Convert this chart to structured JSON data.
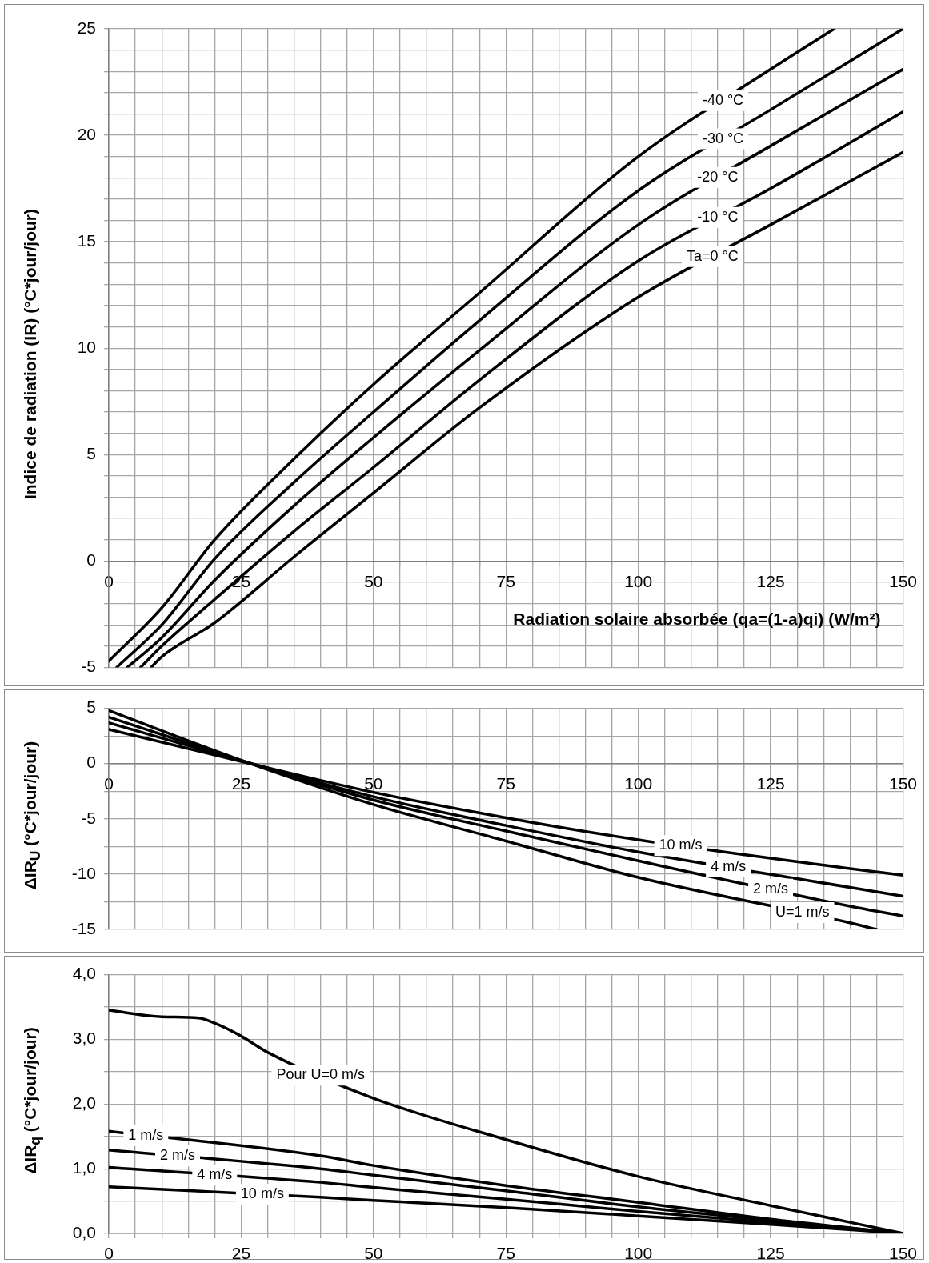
{
  "chart_data": [
    {
      "type": "line",
      "xlabel": "Radiation solaire absorbée (qa=(1-a)qi) (W/m²)",
      "ylabel": "Indice de radiation (IR) (°C*jour/jour)",
      "xlim": [
        0,
        150
      ],
      "ylim": [
        -5,
        25
      ],
      "xticks": [
        0,
        {
          "value": 5,
          "label": null
        },
        {
          "value": 10,
          "label": null
        },
        {
          "value": 15,
          "label": null
        },
        {
          "value": 20,
          "label": null
        },
        25,
        {
          "value": 30,
          "label": null
        },
        {
          "value": 35,
          "label": null
        },
        {
          "value": 40,
          "label": null
        },
        {
          "value": 45,
          "label": null
        },
        50,
        {
          "value": 55,
          "label": null
        },
        {
          "value": 60,
          "label": null
        },
        {
          "value": 65,
          "label": null
        },
        {
          "value": 70,
          "label": null
        },
        75,
        {
          "value": 80,
          "label": null
        },
        {
          "value": 85,
          "label": null
        },
        {
          "value": 90,
          "label": null
        },
        {
          "value": 95,
          "label": null
        },
        100,
        {
          "value": 105,
          "label": null
        },
        {
          "value": 110,
          "label": null
        },
        {
          "value": 115,
          "label": null
        },
        {
          "value": 120,
          "label": null
        },
        125,
        {
          "value": 130,
          "label": null
        },
        {
          "value": 135,
          "label": null
        },
        {
          "value": 140,
          "label": null
        },
        {
          "value": 145,
          "label": null
        },
        150
      ],
      "yticks": [
        -5,
        {
          "value": -4,
          "label": null
        },
        {
          "value": -3,
          "label": null
        },
        {
          "value": -2,
          "label": null
        },
        {
          "value": -1,
          "label": null
        },
        0,
        {
          "value": 1,
          "label": null
        },
        {
          "value": 2,
          "label": null
        },
        {
          "value": 3,
          "label": null
        },
        {
          "value": 4,
          "label": null
        },
        5,
        {
          "value": 6,
          "label": null
        },
        {
          "value": 7,
          "label": null
        },
        {
          "value": 8,
          "label": null
        },
        {
          "value": 9,
          "label": null
        },
        10,
        {
          "value": 11,
          "label": null
        },
        {
          "value": 12,
          "label": null
        },
        {
          "value": 13,
          "label": null
        },
        {
          "value": 14,
          "label": null
        },
        15,
        {
          "value": 16,
          "label": null
        },
        {
          "value": 17,
          "label": null
        },
        {
          "value": 18,
          "label": null
        },
        {
          "value": 19,
          "label": null
        },
        20,
        {
          "value": 21,
          "label": null
        },
        {
          "value": 22,
          "label": null
        },
        {
          "value": 23,
          "label": null
        },
        {
          "value": 24,
          "label": null
        },
        25
      ],
      "grid": true,
      "marker": "none",
      "line_style": "solid",
      "series": [
        {
          "name": "-40 °C",
          "color": "#000000",
          "x": [
            0,
            10,
            20,
            35,
            50,
            70,
            100,
            125,
            137
          ],
          "values": [
            -4.7,
            -2.2,
            1.0,
            4.8,
            8.3,
            12.6,
            19.0,
            23.1,
            25
          ]
        },
        {
          "name": "-30 °C",
          "color": "#000000",
          "x": [
            1.5,
            10,
            20,
            35,
            50,
            70,
            100,
            125,
            150
          ],
          "values": [
            -5,
            -3.0,
            0.1,
            3.7,
            7.0,
            11.3,
            17.4,
            21.2,
            25
          ]
        },
        {
          "name": "-20 °C",
          "color": "#000000",
          "x": [
            3.5,
            10,
            20,
            35,
            50,
            70,
            100,
            125,
            150
          ],
          "values": [
            -5,
            -3.6,
            -0.9,
            2.6,
            5.8,
            9.9,
            15.8,
            19.5,
            23.1
          ]
        },
        {
          "name": "-10 °C",
          "color": "#000000",
          "x": [
            6,
            10,
            20,
            35,
            50,
            70,
            100,
            125,
            150
          ],
          "values": [
            -5,
            -4.0,
            -1.8,
            1.4,
            4.4,
            8.5,
            14.1,
            17.5,
            21.1
          ]
        },
        {
          "name": "Ta=0 °C",
          "color": "#000000",
          "x": [
            8,
            10,
            20,
            35,
            50,
            70,
            100,
            125,
            150
          ],
          "values": [
            -5,
            -4.5,
            -2.9,
            0.2,
            3.2,
            7.2,
            12.4,
            15.8,
            19.2
          ]
        }
      ]
    },
    {
      "type": "line",
      "ylabel": "ΔIR$_{U}$ (°C*jour/jour)",
      "xlim": [
        0,
        150
      ],
      "ylim": [
        -15,
        5
      ],
      "xticks": [
        0,
        {
          "value": 5,
          "label": null
        },
        {
          "value": 10,
          "label": null
        },
        {
          "value": 15,
          "label": null
        },
        {
          "value": 20,
          "label": null
        },
        25,
        {
          "value": 30,
          "label": null
        },
        {
          "value": 35,
          "label": null
        },
        {
          "value": 40,
          "label": null
        },
        {
          "value": 45,
          "label": null
        },
        50,
        {
          "value": 55,
          "label": null
        },
        {
          "value": 60,
          "label": null
        },
        {
          "value": 65,
          "label": null
        },
        {
          "value": 70,
          "label": null
        },
        75,
        {
          "value": 80,
          "label": null
        },
        {
          "value": 85,
          "label": null
        },
        {
          "value": 90,
          "label": null
        },
        {
          "value": 95,
          "label": null
        },
        100,
        {
          "value": 105,
          "label": null
        },
        {
          "value": 110,
          "label": null
        },
        {
          "value": 115,
          "label": null
        },
        {
          "value": 120,
          "label": null
        },
        125,
        {
          "value": 130,
          "label": null
        },
        {
          "value": 135,
          "label": null
        },
        {
          "value": 140,
          "label": null
        },
        {
          "value": 145,
          "label": null
        },
        150
      ],
      "yticks": [
        -15,
        {
          "value": -12.5,
          "label": null
        },
        -10,
        {
          "value": -7.5,
          "label": null
        },
        -5,
        {
          "value": -2.5,
          "label": null
        },
        0,
        {
          "value": 2.5,
          "label": null
        },
        5
      ],
      "grid": true,
      "marker": "none",
      "line_style": "solid",
      "series": [
        {
          "name": "10 m/s",
          "color": "#000000",
          "x": [
            0,
            25,
            50,
            75,
            100,
            140,
            150
          ],
          "values": [
            3.1,
            0.2,
            -2.6,
            -4.9,
            -6.9,
            -9.5,
            -10.1
          ]
        },
        {
          "name": "4 m/s",
          "color": "#000000",
          "x": [
            0,
            25,
            50,
            75,
            100,
            140,
            150
          ],
          "values": [
            3.7,
            0.25,
            -3.0,
            -5.6,
            -8.0,
            -11.2,
            -12.0
          ]
        },
        {
          "name": "2 m/s",
          "color": "#000000",
          "x": [
            0,
            25,
            50,
            75,
            100,
            140,
            150
          ],
          "values": [
            4.2,
            0.3,
            -3.3,
            -6.1,
            -8.8,
            -12.9,
            -13.8
          ]
        },
        {
          "name": "U=1 m/s",
          "color": "#000000",
          "x": [
            0,
            25,
            50,
            75,
            100,
            140,
            145
          ],
          "values": [
            4.8,
            0.3,
            -3.7,
            -7.0,
            -10.3,
            -14.4,
            -15
          ]
        }
      ]
    },
    {
      "type": "line",
      "ylabel": "ΔIR$_{q}$ (°C*jour/jour)",
      "xlim": [
        0,
        150
      ],
      "ylim": [
        0,
        4
      ],
      "xticks": [
        0,
        {
          "value": 5,
          "label": null
        },
        {
          "value": 10,
          "label": null
        },
        {
          "value": 15,
          "label": null
        },
        {
          "value": 20,
          "label": null
        },
        25,
        {
          "value": 30,
          "label": null
        },
        {
          "value": 35,
          "label": null
        },
        {
          "value": 40,
          "label": null
        },
        {
          "value": 45,
          "label": null
        },
        50,
        {
          "value": 55,
          "label": null
        },
        {
          "value": 60,
          "label": null
        },
        {
          "value": 65,
          "label": null
        },
        {
          "value": 70,
          "label": null
        },
        75,
        {
          "value": 80,
          "label": null
        },
        {
          "value": 85,
          "label": null
        },
        {
          "value": 90,
          "label": null
        },
        {
          "value": 95,
          "label": null
        },
        100,
        {
          "value": 105,
          "label": null
        },
        {
          "value": 110,
          "label": null
        },
        {
          "value": 115,
          "label": null
        },
        {
          "value": 120,
          "label": null
        },
        125,
        {
          "value": 130,
          "label": null
        },
        {
          "value": 135,
          "label": null
        },
        {
          "value": 140,
          "label": null
        },
        {
          "value": 145,
          "label": null
        },
        150
      ],
      "yticks": [
        {
          "value": 0,
          "label": "0,0"
        },
        {
          "value": 0.5,
          "label": null
        },
        {
          "value": 1,
          "label": "1,0"
        },
        {
          "value": 1.5,
          "label": null
        },
        {
          "value": 2,
          "label": "2,0"
        },
        {
          "value": 2.5,
          "label": null
        },
        {
          "value": 3,
          "label": "3,0"
        },
        {
          "value": 3.5,
          "label": null
        },
        {
          "value": 4,
          "label": "4,0"
        }
      ],
      "grid": true,
      "marker": "none",
      "line_style": "solid",
      "series": [
        {
          "name": "Pour U=0 m/s",
          "color": "#000000",
          "x": [
            0,
            10,
            17,
            20,
            25,
            30,
            50,
            75,
            100,
            125,
            150
          ],
          "values": [
            3.45,
            3.35,
            3.33,
            3.25,
            3.05,
            2.8,
            2.09,
            1.45,
            0.88,
            0.43,
            0
          ]
        },
        {
          "name": "1 m/s",
          "color": "#000000",
          "x": [
            0,
            40,
            50,
            75,
            100,
            125,
            150
          ],
          "values": [
            1.58,
            1.2,
            1.05,
            0.74,
            0.48,
            0.22,
            0
          ]
        },
        {
          "name": "2 m/s",
          "color": "#000000",
          "x": [
            0,
            40,
            50,
            75,
            100,
            125,
            150
          ],
          "values": [
            1.29,
            1.0,
            0.9,
            0.66,
            0.41,
            0.2,
            0
          ]
        },
        {
          "name": "4 m/s",
          "color": "#000000",
          "x": [
            0,
            40,
            50,
            75,
            100,
            125,
            150
          ],
          "values": [
            1.02,
            0.79,
            0.71,
            0.53,
            0.34,
            0.17,
            0
          ]
        },
        {
          "name": "10 m/s",
          "color": "#000000",
          "x": [
            0,
            40,
            50,
            75,
            100,
            125,
            150
          ],
          "values": [
            0.72,
            0.56,
            0.51,
            0.4,
            0.27,
            0.14,
            0
          ]
        }
      ]
    }
  ]
}
